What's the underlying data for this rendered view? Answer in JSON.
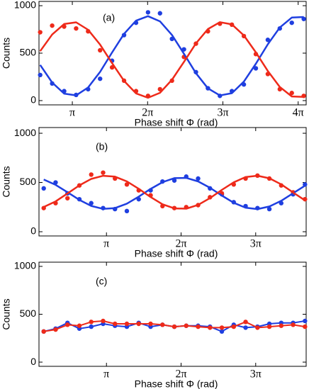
{
  "chart_data": [
    {
      "type": "scatter",
      "label": "(a)",
      "xlabel": "Phase shift Φ (rad)",
      "ylabel": "Counts",
      "xlim": [
        1.75,
        12.9
      ],
      "ylim": [
        -45,
        1045
      ],
      "yticks": [
        0,
        500,
        1000
      ],
      "xticks": [
        {
          "value": 3.1416,
          "label": "π"
        },
        {
          "value": 6.2832,
          "label": "2π"
        },
        {
          "value": 9.4248,
          "label": "3π"
        },
        {
          "value": 12.5664,
          "label": "4π"
        }
      ],
      "series": [
        {
          "color": "#1f3fe0",
          "style": "markers",
          "x": [
            1.8,
            2.3,
            2.8,
            3.3,
            3.8,
            4.3,
            4.8,
            5.3,
            5.8,
            6.3,
            6.8,
            7.3,
            7.8,
            8.3,
            8.8,
            9.3,
            9.8,
            10.3,
            10.8,
            11.3,
            11.8,
            12.3,
            12.8
          ],
          "values": [
            270,
            180,
            100,
            60,
            120,
            230,
            420,
            690,
            820,
            930,
            920,
            650,
            540,
            300,
            130,
            50,
            100,
            170,
            340,
            640,
            760,
            820,
            860
          ]
        },
        {
          "color": "#ee2a1a",
          "style": "markers",
          "x": [
            1.8,
            2.3,
            2.8,
            3.3,
            3.8,
            4.3,
            4.8,
            5.3,
            5.8,
            6.3,
            6.8,
            7.3,
            7.8,
            8.3,
            8.8,
            9.3,
            9.8,
            10.3,
            10.8,
            11.3,
            11.8,
            12.3,
            12.8
          ],
          "values": [
            720,
            790,
            780,
            760,
            730,
            530,
            350,
            210,
            100,
            50,
            120,
            210,
            460,
            600,
            730,
            810,
            800,
            680,
            490,
            280,
            120,
            80,
            50
          ]
        },
        {
          "color": "#1f3fe0",
          "style": "line",
          "x": [
            1.8,
            2.3,
            2.8,
            3.3,
            3.8,
            4.3,
            4.8,
            5.3,
            5.8,
            6.3,
            6.8,
            7.3,
            7.8,
            8.3,
            8.8,
            9.3,
            9.8,
            10.3,
            10.8,
            11.3,
            11.8,
            12.3,
            12.8
          ],
          "values": [
            375,
            190,
            74,
            55,
            138,
            302,
            507,
            703,
            842,
            890,
            835,
            691,
            493,
            289,
            129,
            54,
            78,
            200,
            388,
            593,
            770,
            875,
            881
          ]
        },
        {
          "color": "#ee2a1a",
          "style": "line",
          "x": [
            1.8,
            2.3,
            2.8,
            3.3,
            3.8,
            4.3,
            4.8,
            5.3,
            5.8,
            6.3,
            6.8,
            7.3,
            7.8,
            8.3,
            8.8,
            9.3,
            9.8,
            10.3,
            10.8,
            11.3,
            11.8,
            12.3,
            12.8
          ],
          "values": [
            521,
            696,
            807,
            825,
            746,
            590,
            395,
            208,
            76,
            30,
            82,
            220,
            408,
            603,
            754,
            826,
            803,
            687,
            508,
            312,
            144,
            44,
            39
          ]
        }
      ]
    },
    {
      "type": "scatter",
      "label": "(b)",
      "xlabel": "Phase shift Φ (rad)",
      "ylabel": "Counts",
      "xlim": [
        0.3,
        11.55
      ],
      "ylim": [
        -43,
        1058
      ],
      "yticks": [
        0,
        500,
        1000
      ],
      "xticks": [
        {
          "value": 3.1416,
          "label": "π"
        },
        {
          "value": 6.2832,
          "label": "2π"
        },
        {
          "value": 9.4248,
          "label": "3π"
        }
      ],
      "series": [
        {
          "color": "#1f3fe0",
          "style": "markers",
          "x": [
            0.5,
            1.0,
            1.5,
            2.0,
            2.5,
            3.0,
            3.5,
            4.0,
            4.5,
            5.0,
            5.5,
            6.0,
            6.5,
            7.0,
            7.5,
            8.0,
            8.5,
            9.0,
            9.5,
            10.0,
            10.5,
            11.0,
            11.5
          ],
          "values": [
            440,
            500,
            390,
            330,
            290,
            240,
            230,
            210,
            330,
            420,
            510,
            520,
            560,
            540,
            440,
            380,
            300,
            260,
            240,
            230,
            290,
            380,
            480
          ]
        },
        {
          "color": "#ee2a1a",
          "style": "markers",
          "x": [
            0.5,
            1.0,
            1.5,
            2.0,
            2.5,
            3.0,
            3.5,
            4.0,
            4.5,
            5.0,
            5.5,
            6.0,
            6.5,
            7.0,
            7.5,
            8.0,
            8.5,
            9.0,
            9.5,
            10.0,
            10.5,
            11.0,
            11.5
          ],
          "values": [
            240,
            290,
            340,
            470,
            580,
            600,
            540,
            480,
            420,
            370,
            260,
            240,
            250,
            270,
            350,
            390,
            480,
            540,
            570,
            540,
            470,
            400,
            330
          ]
        },
        {
          "color": "#1f3fe0",
          "style": "line",
          "x": [
            0.5,
            1.0,
            1.5,
            2.0,
            2.5,
            3.0,
            3.5,
            4.0,
            4.5,
            5.0,
            5.5,
            6.0,
            6.5,
            7.0,
            7.5,
            8.0,
            8.5,
            9.0,
            9.5,
            10.0,
            10.5,
            11.0,
            11.5
          ],
          "values": [
            530,
            476,
            401,
            323,
            262,
            232,
            240,
            285,
            356,
            435,
            503,
            544,
            546,
            511,
            446,
            367,
            294,
            244,
            230,
            256,
            314,
            391,
            467
          ]
        },
        {
          "color": "#ee2a1a",
          "style": "line",
          "x": [
            0.5,
            1.0,
            1.5,
            2.0,
            2.5,
            3.0,
            3.5,
            4.0,
            4.5,
            5.0,
            5.5,
            6.0,
            6.5,
            7.0,
            7.5,
            8.0,
            8.5,
            9.0,
            9.5,
            10.0,
            10.5,
            11.0,
            11.5
          ],
          "values": [
            251,
            308,
            388,
            471,
            536,
            568,
            559,
            511,
            436,
            352,
            279,
            237,
            234,
            272,
            341,
            425,
            502,
            555,
            569,
            543,
            481,
            399,
            318
          ]
        }
      ]
    },
    {
      "type": "scatter",
      "label": "(c)",
      "xlabel": "Phase shift Φ (rad)",
      "ylabel": "Counts",
      "xlim": [
        0.3,
        11.55
      ],
      "ylim": [
        -44,
        1044
      ],
      "yticks": [
        0,
        500,
        1000
      ],
      "xticks": [
        {
          "value": 3.1416,
          "label": "π"
        },
        {
          "value": 6.2832,
          "label": "2π"
        },
        {
          "value": 9.4248,
          "label": "3π"
        }
      ],
      "series": [
        {
          "color": "#1f3fe0",
          "style": "line+markers",
          "x": [
            0.5,
            1.0,
            1.5,
            2.0,
            2.5,
            3.0,
            3.5,
            4.0,
            4.5,
            5.0,
            5.5,
            6.0,
            6.5,
            7.0,
            7.5,
            8.0,
            8.5,
            9.0,
            9.5,
            10.0,
            10.5,
            11.0,
            11.5
          ],
          "values": [
            320,
            350,
            410,
            350,
            370,
            400,
            380,
            370,
            410,
            370,
            390,
            370,
            380,
            380,
            370,
            320,
            390,
            360,
            370,
            400,
            410,
            410,
            430
          ]
        },
        {
          "color": "#ee2a1a",
          "style": "line+markers",
          "x": [
            0.5,
            1.0,
            1.5,
            2.0,
            2.5,
            3.0,
            3.5,
            4.0,
            4.5,
            5.0,
            5.5,
            6.0,
            6.5,
            7.0,
            7.5,
            8.0,
            8.5,
            9.0,
            9.5,
            10.0,
            10.5,
            11.0,
            11.5
          ],
          "values": [
            320,
            340,
            390,
            380,
            420,
            430,
            400,
            400,
            400,
            400,
            390,
            370,
            380,
            370,
            360,
            360,
            370,
            420,
            360,
            370,
            380,
            390,
            370
          ]
        }
      ]
    }
  ]
}
